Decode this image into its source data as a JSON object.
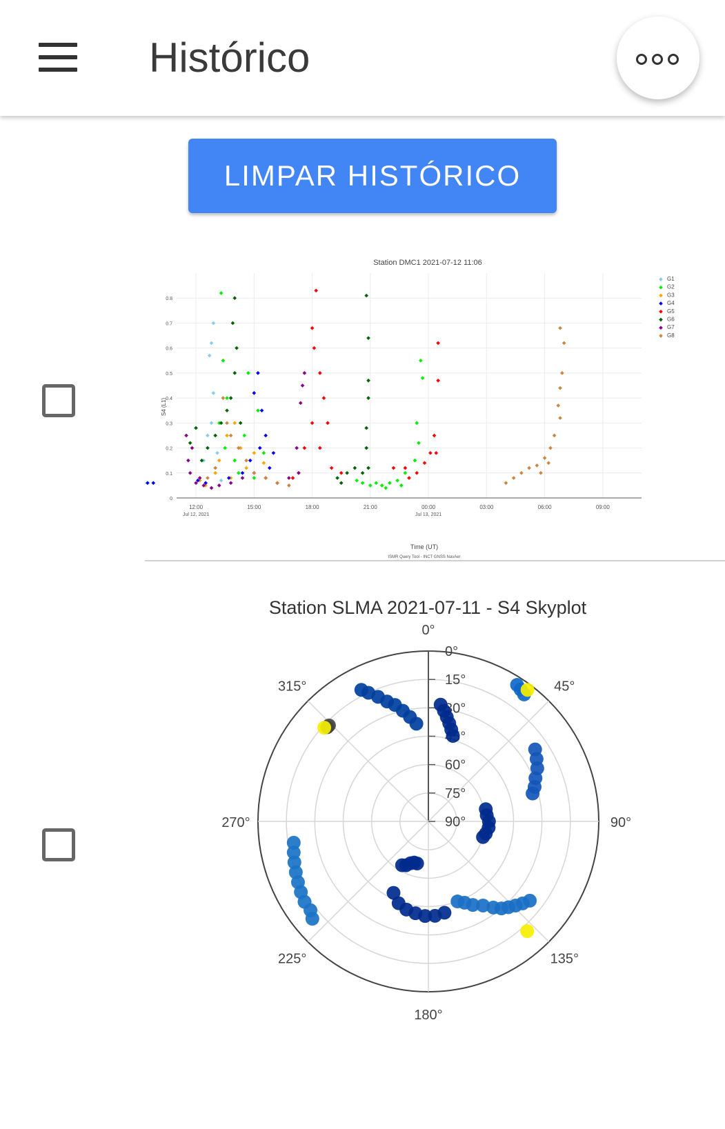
{
  "app": {
    "title": "Histórico"
  },
  "header": {
    "menu_icon": "hamburger-menu-icon",
    "more_icon": "more-horizontal-icon"
  },
  "actions": {
    "clear_history_label": "LIMPAR HISTÓRICO",
    "button_color": "#4285f4"
  },
  "history": [
    {
      "checked": false
    },
    {
      "checked": false
    }
  ],
  "chart_data": [
    {
      "type": "scatter",
      "title": "Station DMC1 2021-07-12 11:06",
      "xlabel": "Time (UT)",
      "ylabel": "S4 (L1)",
      "ylim": [
        0,
        0.9
      ],
      "yticks": [
        "0",
        "0.1",
        "0.2",
        "0.3",
        "0.4",
        "0.5",
        "0.6",
        "0.7",
        "0.8"
      ],
      "xticks": [
        "12:00",
        "15:00",
        "18:00",
        "21:00",
        "00:00",
        "03:00",
        "06:00",
        "09:00"
      ],
      "xtick_dates": [
        "Jul 12, 2021",
        "",
        "",
        "",
        "Jul 13, 2021",
        "",
        "",
        ""
      ],
      "footer": "ISMR Query Tool - INCT GNSS NavAer",
      "grid": true,
      "legend_position": "right",
      "series": [
        {
          "name": "G1",
          "color": "#87ceeb",
          "points": [
            [
              12.4,
              0.15
            ],
            [
              12.6,
              0.25
            ],
            [
              12.8,
              0.3
            ],
            [
              12.9,
              0.7
            ],
            [
              12.8,
              0.62
            ],
            [
              12.7,
              0.57
            ],
            [
              12.9,
              0.42
            ],
            [
              13.1,
              0.18
            ],
            [
              12.2,
              0.08
            ],
            [
              12.5,
              0.06
            ],
            [
              13.0,
              0.1
            ],
            [
              13.3,
              0.07
            ],
            [
              8.1,
              0.1
            ],
            [
              8.4,
              0.07
            ],
            [
              8.7,
              0.06
            ],
            [
              9.1,
              0.05
            ],
            [
              9.3,
              0.06
            ],
            [
              7.9,
              0.08
            ]
          ]
        },
        {
          "name": "G2",
          "color": "#00ee00",
          "points": [
            [
              13.3,
              0.82
            ],
            [
              13.4,
              0.55
            ],
            [
              13.6,
              0.4
            ],
            [
              13.2,
              0.3
            ],
            [
              13.5,
              0.2
            ],
            [
              14.0,
              0.15
            ],
            [
              14.5,
              0.25
            ],
            [
              14.7,
              0.5
            ],
            [
              15.2,
              0.35
            ],
            [
              15.5,
              0.18
            ],
            [
              14.2,
              0.1
            ],
            [
              15.0,
              0.08
            ],
            [
              20.3,
              0.07
            ],
            [
              20.6,
              0.06
            ],
            [
              21.0,
              0.05
            ],
            [
              21.3,
              0.06
            ],
            [
              21.6,
              0.05
            ],
            [
              22.0,
              0.06
            ],
            [
              22.4,
              0.07
            ],
            [
              22.8,
              0.1
            ],
            [
              23.3,
              0.15
            ],
            [
              23.5,
              0.22
            ],
            [
              23.6,
              0.55
            ],
            [
              23.7,
              0.48
            ],
            [
              23.4,
              0.3
            ],
            [
              22.6,
              0.05
            ],
            [
              21.8,
              0.04
            ]
          ]
        },
        {
          "name": "G3",
          "color": "#ffa500",
          "points": [
            [
              13.0,
              0.1
            ],
            [
              13.2,
              0.15
            ],
            [
              13.6,
              0.25
            ],
            [
              14.0,
              0.3
            ],
            [
              14.3,
              0.2
            ],
            [
              14.6,
              0.12
            ],
            [
              15.0,
              0.18
            ],
            [
              15.5,
              0.14
            ],
            [
              13.8,
              0.08
            ],
            [
              12.5,
              0.05
            ],
            [
              12.2,
              0.07
            ],
            [
              7.5,
              0.15
            ],
            [
              7.8,
              0.12
            ],
            [
              8.1,
              0.1
            ],
            [
              8.4,
              0.08
            ],
            [
              7.2,
              0.12
            ],
            [
              7.0,
              0.1
            ],
            [
              8.6,
              0.07
            ]
          ]
        },
        {
          "name": "G4",
          "color": "#0000ff",
          "points": [
            [
              15.2,
              0.5
            ],
            [
              15.0,
              0.42
            ],
            [
              15.4,
              0.35
            ],
            [
              15.6,
              0.25
            ],
            [
              15.3,
              0.2
            ],
            [
              14.8,
              0.15
            ],
            [
              14.4,
              0.1
            ],
            [
              13.7,
              0.08
            ],
            [
              12.5,
              0.06
            ],
            [
              12.1,
              0.07
            ],
            [
              15.8,
              0.12
            ],
            [
              16.0,
              0.18
            ],
            [
              8.2,
              0.1
            ],
            [
              8.5,
              0.08
            ],
            [
              8.8,
              0.07
            ],
            [
              9.2,
              0.06
            ],
            [
              9.5,
              0.06
            ],
            [
              9.8,
              0.06
            ],
            [
              9.0,
              0.1
            ],
            [
              8.0,
              0.09
            ]
          ]
        },
        {
          "name": "G5",
          "color": "#ff0000",
          "points": [
            [
              18.2,
              0.83
            ],
            [
              18.0,
              0.68
            ],
            [
              18.1,
              0.6
            ],
            [
              18.4,
              0.5
            ],
            [
              18.6,
              0.4
            ],
            [
              18.8,
              0.3
            ],
            [
              18.0,
              0.3
            ],
            [
              17.6,
              0.2
            ],
            [
              17.3,
              0.1
            ],
            [
              17.0,
              0.08
            ],
            [
              18.4,
              0.2
            ],
            [
              19.0,
              0.12
            ],
            [
              19.5,
              0.1
            ],
            [
              22.2,
              0.12
            ],
            [
              22.8,
              0.12
            ],
            [
              23.4,
              0.1
            ],
            [
              23.8,
              0.14
            ],
            [
              24.1,
              0.18
            ],
            [
              24.3,
              0.25
            ],
            [
              24.5,
              0.47
            ],
            [
              24.5,
              0.62
            ],
            [
              24.4,
              0.18
            ],
            [
              23.0,
              0.08
            ]
          ]
        },
        {
          "name": "G6",
          "color": "#006400",
          "points": [
            [
              14.0,
              0.8
            ],
            [
              13.9,
              0.7
            ],
            [
              14.1,
              0.6
            ],
            [
              14.0,
              0.5
            ],
            [
              13.8,
              0.4
            ],
            [
              13.6,
              0.35
            ],
            [
              13.3,
              0.3
            ],
            [
              13.0,
              0.25
            ],
            [
              12.6,
              0.2
            ],
            [
              12.0,
              0.28
            ],
            [
              11.7,
              0.22
            ],
            [
              12.3,
              0.15
            ],
            [
              14.3,
              0.3
            ],
            [
              19.3,
              0.08
            ],
            [
              19.8,
              0.1
            ],
            [
              20.2,
              0.12
            ],
            [
              20.6,
              0.1
            ],
            [
              20.9,
              0.12
            ],
            [
              20.8,
              0.2
            ],
            [
              20.8,
              0.28
            ],
            [
              20.9,
              0.4
            ],
            [
              20.9,
              0.47
            ],
            [
              20.9,
              0.64
            ],
            [
              20.8,
              0.81
            ],
            [
              19.5,
              0.06
            ]
          ]
        },
        {
          "name": "G7",
          "color": "#8b008b",
          "points": [
            [
              11.5,
              0.25
            ],
            [
              11.6,
              0.15
            ],
            [
              11.7,
              0.1
            ],
            [
              12.0,
              0.06
            ],
            [
              12.4,
              0.05
            ],
            [
              12.8,
              0.04
            ],
            [
              13.2,
              0.05
            ],
            [
              13.8,
              0.06
            ],
            [
              14.4,
              0.08
            ],
            [
              15.0,
              0.1
            ],
            [
              15.6,
              0.08
            ],
            [
              16.2,
              0.06
            ],
            [
              16.8,
              0.08
            ],
            [
              17.3,
              0.1
            ],
            [
              17.6,
              0.5
            ],
            [
              17.5,
              0.45
            ],
            [
              17.4,
              0.38
            ],
            [
              17.2,
              0.2
            ],
            [
              11.8,
              0.2
            ],
            [
              12.2,
              0.08
            ]
          ]
        },
        {
          "name": "G8",
          "color": "#cd853f",
          "points": [
            [
              13.4,
              0.4
            ],
            [
              13.6,
              0.3
            ],
            [
              13.8,
              0.25
            ],
            [
              14.2,
              0.2
            ],
            [
              14.6,
              0.15
            ],
            [
              15.0,
              0.1
            ],
            [
              15.6,
              0.08
            ],
            [
              16.2,
              0.06
            ],
            [
              16.8,
              0.05
            ],
            [
              13.0,
              0.12
            ],
            [
              12.6,
              0.08
            ],
            [
              30.8,
              0.68
            ],
            [
              31.0,
              0.62
            ],
            [
              30.9,
              0.5
            ],
            [
              30.8,
              0.44
            ],
            [
              30.7,
              0.37
            ],
            [
              30.8,
              0.32
            ],
            [
              30.5,
              0.25
            ],
            [
              30.3,
              0.2
            ],
            [
              30.0,
              0.16
            ],
            [
              29.6,
              0.13
            ],
            [
              29.2,
              0.12
            ],
            [
              28.8,
              0.1
            ],
            [
              28.4,
              0.08
            ],
            [
              28.0,
              0.06
            ],
            [
              30.2,
              0.14
            ],
            [
              29.8,
              0.1
            ]
          ]
        }
      ]
    },
    {
      "type": "scatter",
      "title": "Station SLMA 2021-07-11 - S4 Skyplot",
      "subtitle_note": "",
      "projection": "polar",
      "angular_ticks": [
        "0°",
        "45°",
        "90°",
        "135°",
        "180°",
        "225°",
        "270°",
        "315°"
      ],
      "radial_ticks": [
        "0°",
        "15°",
        "30°",
        "45°",
        "60°",
        "75°",
        "90°"
      ],
      "grid": true,
      "tracks": [
        {
          "color": "#003f9e",
          "points": [
            [
              333,
              12
            ],
            [
              335,
              15
            ],
            [
              338,
              19
            ],
            [
              341,
              23
            ],
            [
              344,
              26
            ],
            [
              347,
              30
            ],
            [
              350,
              34
            ],
            [
              353,
              38
            ]
          ]
        },
        {
          "color": "#002a8c",
          "points": [
            [
              6,
              28
            ],
            [
              8,
              31
            ],
            [
              10,
              34
            ],
            [
              12,
              37
            ],
            [
              14,
              40
            ],
            [
              16,
              43
            ]
          ]
        },
        {
          "color": "#0f68c8",
          "points": [
            [
              33,
              4
            ],
            [
              35,
              5
            ],
            [
              37,
              6
            ]
          ]
        },
        {
          "color": "#f5ef00",
          "points": [
            [
              37,
              3
            ]
          ]
        },
        {
          "color": "#1456b8",
          "points": [
            [
              56,
              22
            ],
            [
              60,
              24
            ],
            [
              64,
              26
            ],
            [
              68,
              29
            ],
            [
              72,
              31
            ],
            [
              75,
              33
            ]
          ]
        },
        {
          "color": "#002a8c",
          "points": [
            [
              78,
              59
            ],
            [
              84,
              59
            ],
            [
              90,
              58
            ],
            [
              96,
              58
            ],
            [
              102,
              59
            ],
            [
              106,
              60
            ]
          ]
        },
        {
          "color": "#1a6fc5",
          "points": [
            [
              128,
              22
            ],
            [
              131,
              24
            ],
            [
              134,
              26
            ],
            [
              137,
              28
            ],
            [
              140,
              30
            ],
            [
              143,
              33
            ],
            [
              147,
              37
            ],
            [
              152,
              40
            ],
            [
              156,
              43
            ],
            [
              160,
              45
            ]
          ]
        },
        {
          "color": "#f5ef00",
          "points": [
            [
              138,
              12
            ]
          ]
        },
        {
          "color": "#002a8c",
          "points": [
            [
              170,
              41
            ],
            [
              176,
              40
            ],
            [
              182,
              40
            ],
            [
              188,
              41
            ],
            [
              194,
              42
            ],
            [
              200,
              44
            ],
            [
              206,
              48
            ]
          ]
        },
        {
          "color": "#002a8c",
          "points": [
            [
              195,
              67
            ],
            [
              199,
              67
            ],
            [
              203,
              66
            ],
            [
              207,
              64
            ],
            [
              211,
              63
            ]
          ]
        },
        {
          "color": "#1a73c7",
          "points": [
            [
              230,
              10
            ],
            [
              233,
              12
            ],
            [
              237,
              12
            ],
            [
              241,
              13
            ],
            [
              245,
              14
            ],
            [
              249,
              15
            ],
            [
              253,
              16
            ],
            [
              257,
              17
            ],
            [
              261,
              18
            ]
          ]
        },
        {
          "color": "#444444",
          "points": [
            [
              314,
              17
            ],
            [
              313,
              17
            ]
          ]
        },
        {
          "color": "#f5ef00",
          "points": [
            [
              312,
              16
            ]
          ]
        }
      ]
    }
  ]
}
